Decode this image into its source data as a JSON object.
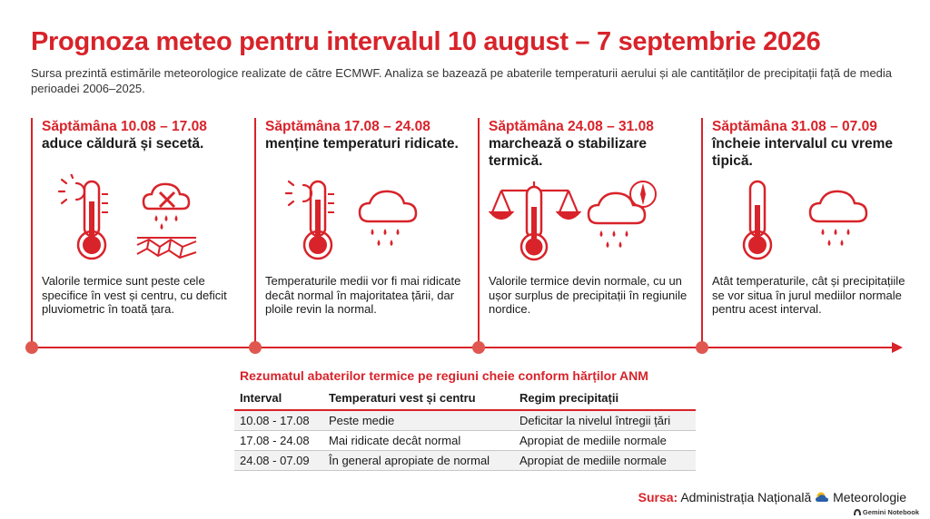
{
  "title": "Prognoza meteo pentru intervalul 10 august – 7 septembrie 2026",
  "subtitle": "Sursa prezintă estimările meteorologice realizate de către ECMWF. Analiza se bazează pe abaterile temperaturii aerului și ale cantităților de precipitații față de media perioadei 2006–2025.",
  "weeks": [
    {
      "heading": "Săptămâna 10.08 – 17.08",
      "subheading": "aduce căldură și secetă.",
      "body": "Valorile termice sunt peste cele specifice în vest și centru, cu deficit pluviometric în toată țara.",
      "icons": [
        "sun-icon",
        "thermometer-icon",
        "no-rain-cloud-icon",
        "cracked-earth-icon"
      ]
    },
    {
      "heading": "Săptămâna 17.08 – 24.08",
      "subheading": "menține temperaturi ridicate.",
      "body": "Temperaturile medii vor fi mai ridicate decât normal în majoritatea țării, dar ploile revin la normal.",
      "icons": [
        "sun-icon",
        "thermometer-icon",
        "rain-cloud-icon"
      ]
    },
    {
      "heading": "Săptămâna 24.08 – 31.08",
      "subheading": "marchează o stabilizare termică.",
      "body": "Valorile termice devin normale, cu un ușor surplus de precipitații în regiunile nordice.",
      "icons": [
        "balance-scale-icon",
        "thermometer-icon",
        "rain-cloud-icon",
        "compass-icon"
      ]
    },
    {
      "heading": "Săptămâna 31.08 – 07.09",
      "subheading": "încheie intervalul cu vreme tipică.",
      "body": "Atât temperaturile, cât și precipitațiile se vor situa în jurul mediilor normale pentru acest interval.",
      "icons": [
        "thermometer-icon",
        "rain-cloud-icon"
      ]
    }
  ],
  "summary": {
    "title": "Rezumatul abaterilor termice pe regiuni cheie conform hărților ANM",
    "headers": [
      "Interval",
      "Temperaturi vest și centru",
      "Regim precipitații"
    ],
    "rows": [
      [
        "10.08 - 17.08",
        "Peste medie",
        "Deficitar la nivelul întregii țări"
      ],
      [
        "17.08 - 24.08",
        "Mai ridicate decât normal",
        "Apropiat de mediile normale"
      ],
      [
        "24.08 - 07.09",
        "În general apropiate de normal",
        "Apropiat de mediile normale"
      ]
    ]
  },
  "source": {
    "label": "Sursa:",
    "text_before_logo": "Administrația Națională",
    "text_after_logo": "Meteorologie"
  },
  "footer": "Gemini Notebook",
  "colors": {
    "accent": "#d8232a",
    "dot": "#e0574f",
    "row_shade": "#f2f2f2"
  }
}
